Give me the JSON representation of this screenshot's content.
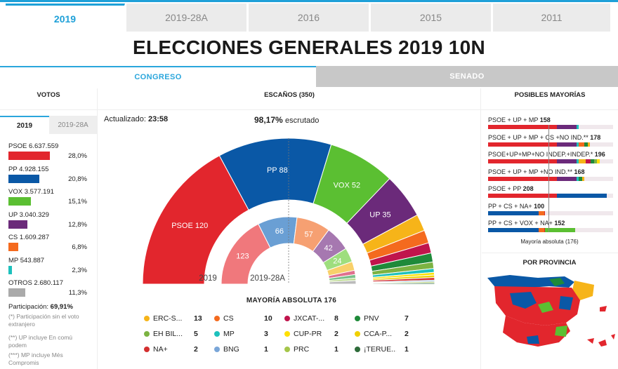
{
  "years": [
    "2019",
    "2019-28A",
    "2016",
    "2015",
    "2011"
  ],
  "title": "ELECCIONES GENERALES 2019 10N",
  "chambers": [
    "CONGRESO",
    "SENADO"
  ],
  "headers": {
    "votes": "VOTOS",
    "seats": "ESCAÑOS (350)",
    "majorities": "POSIBLES MAYORÍAS",
    "province": "POR PROVINCIA"
  },
  "votes_tabs": [
    "2019",
    "2019-28A"
  ],
  "votes": [
    {
      "label": "PSOE 6.637.559",
      "pct": "28,0%",
      "value": 28.0,
      "color": "#e2262d"
    },
    {
      "label": "PP 4.928.155",
      "pct": "20,8%",
      "value": 20.8,
      "color": "#0a58a6"
    },
    {
      "label": "VOX 3.577.191",
      "pct": "15,1%",
      "value": 15.1,
      "color": "#5bbf32"
    },
    {
      "label": "UP 3.040.329",
      "pct": "12,8%",
      "value": 12.8,
      "color": "#6b2a7a"
    },
    {
      "label": "CS 1.609.287",
      "pct": "6,8%",
      "value": 6.8,
      "color": "#f46a1e"
    },
    {
      "label": "MP 543.887",
      "pct": "2,3%",
      "value": 2.3,
      "color": "#1dc1bd"
    },
    {
      "label": "OTROS 2.680.117",
      "pct": "11,3%",
      "value": 11.3,
      "color": "#aaaaaa"
    }
  ],
  "participation_label": "Participación:",
  "participation": "69,91%",
  "notes": [
    "(*) Participación sin el voto extranjero",
    "(**) UP incluye En comú podem",
    "(***) MP incluye Més Compromis"
  ],
  "updated_label": "Actualizado:",
  "updated": "23:58",
  "scrutiny": "98,17%",
  "scrutiny_label": "escrutado",
  "chart_data": {
    "type": "pie",
    "title": "ESCAÑOS (350)",
    "outer_label": "2019",
    "inner_label": "2019-28A",
    "outer": [
      {
        "party": "PSOE",
        "seats": 120,
        "color": "#e2262d",
        "label": "PSOE 120"
      },
      {
        "party": "PP",
        "seats": 88,
        "color": "#0a58a6",
        "label": "PP 88"
      },
      {
        "party": "VOX",
        "seats": 52,
        "color": "#5bbf32",
        "label": "VOX 52"
      },
      {
        "party": "UP",
        "seats": 35,
        "color": "#6b2a7a",
        "label": "UP 35"
      },
      {
        "party": "ERC-S",
        "seats": 13,
        "color": "#f6b419"
      },
      {
        "party": "CS",
        "seats": 10,
        "color": "#f46a1e"
      },
      {
        "party": "JXCAT",
        "seats": 8,
        "color": "#c0144c"
      },
      {
        "party": "PNV",
        "seats": 7,
        "color": "#1f8a3a"
      },
      {
        "party": "EH BIL",
        "seats": 5,
        "color": "#7cb342"
      },
      {
        "party": "MP",
        "seats": 3,
        "color": "#1dc1bd"
      },
      {
        "party": "CUP-PR",
        "seats": 2,
        "color": "#ffe000"
      },
      {
        "party": "CCA-P",
        "seats": 2,
        "color": "#f0d000"
      },
      {
        "party": "NA+",
        "seats": 2,
        "color": "#d32f2f"
      },
      {
        "party": "BNG",
        "seats": 1,
        "color": "#7aa6d8"
      },
      {
        "party": "PRC",
        "seats": 1,
        "color": "#a5c64a"
      },
      {
        "party": "TERUEL",
        "seats": 1,
        "color": "#2e6b3a"
      }
    ],
    "inner": [
      {
        "party": "PSOE",
        "seats": 123,
        "color": "#f0787c",
        "label": "123"
      },
      {
        "party": "PP",
        "seats": 66,
        "color": "#6a9fd4",
        "label": "66"
      },
      {
        "party": "CS",
        "seats": 57,
        "color": "#f6a072",
        "label": "57"
      },
      {
        "party": "UP",
        "seats": 42,
        "color": "#a678b0",
        "label": "42"
      },
      {
        "party": "VOX",
        "seats": 24,
        "color": "#9ede7e",
        "label": "24"
      },
      {
        "party": "ERC",
        "seats": 15,
        "color": "#f8d06a"
      },
      {
        "party": "JXCAT",
        "seats": 7,
        "color": "#e0708e"
      },
      {
        "party": "PNV",
        "seats": 6,
        "color": "#7ac08a"
      },
      {
        "party": "EH BIL",
        "seats": 4,
        "color": "#b8d88a"
      },
      {
        "party": "Otros",
        "seats": 6,
        "color": "#bbbbbb"
      }
    ],
    "majority": 176
  },
  "majority_label": "MAYORÍA ABSOLUTA",
  "majority_value": "176",
  "legend": [
    {
      "name": "ERC-S...",
      "seats": "13",
      "color": "#f6b419"
    },
    {
      "name": "CS",
      "seats": "10",
      "color": "#f46a1e"
    },
    {
      "name": "JXCAT-...",
      "seats": "8",
      "color": "#c0144c"
    },
    {
      "name": "PNV",
      "seats": "7",
      "color": "#1f8a3a"
    },
    {
      "name": "EH BIL...",
      "seats": "5",
      "color": "#7cb342"
    },
    {
      "name": "MP",
      "seats": "3",
      "color": "#1dc1bd"
    },
    {
      "name": "CUP-PR",
      "seats": "2",
      "color": "#ffe000"
    },
    {
      "name": "CCA-P...",
      "seats": "2",
      "color": "#f0d000"
    },
    {
      "name": "NA+",
      "seats": "2",
      "color": "#d32f2f"
    },
    {
      "name": "BNG",
      "seats": "1",
      "color": "#7aa6d8"
    },
    {
      "name": "PRC",
      "seats": "1",
      "color": "#a5c64a"
    },
    {
      "name": "¡TERUE...",
      "seats": "1",
      "color": "#2e6b3a"
    }
  ],
  "majorities": [
    {
      "label": "PSOE + UP + MP",
      "total": "158",
      "segs": [
        [
          120,
          "#e2262d"
        ],
        [
          35,
          "#6b2a7a"
        ],
        [
          3,
          "#1dc1bd"
        ]
      ]
    },
    {
      "label": "PSOE + UP + MP + CS +NO IND.**",
      "total": "178",
      "segs": [
        [
          120,
          "#e2262d"
        ],
        [
          35,
          "#6b2a7a"
        ],
        [
          3,
          "#1dc1bd"
        ],
        [
          10,
          "#f46a1e"
        ],
        [
          7,
          "#1f8a3a"
        ],
        [
          3,
          "#f6b419"
        ]
      ]
    },
    {
      "label": "PSOE+UP+MP+NO INDEP.+INDEP.*",
      "total": "196",
      "segs": [
        [
          120,
          "#e2262d"
        ],
        [
          35,
          "#6b2a7a"
        ],
        [
          3,
          "#1dc1bd"
        ],
        [
          13,
          "#f6b419"
        ],
        [
          8,
          "#c0144c"
        ],
        [
          7,
          "#1f8a3a"
        ],
        [
          5,
          "#7cb342"
        ],
        [
          5,
          "#ffe000"
        ]
      ]
    },
    {
      "label": "PSOE + UP + MP +NO IND.**",
      "total": "168",
      "segs": [
        [
          120,
          "#e2262d"
        ],
        [
          35,
          "#6b2a7a"
        ],
        [
          3,
          "#1dc1bd"
        ],
        [
          7,
          "#1f8a3a"
        ],
        [
          3,
          "#f6b419"
        ]
      ]
    },
    {
      "label": "PSOE + PP",
      "total": "208",
      "segs": [
        [
          120,
          "#e2262d"
        ],
        [
          88,
          "#0a58a6"
        ]
      ]
    },
    {
      "label": "PP + CS + NA+",
      "total": "100",
      "segs": [
        [
          88,
          "#0a58a6"
        ],
        [
          10,
          "#f46a1e"
        ],
        [
          2,
          "#d32f2f"
        ]
      ]
    },
    {
      "label": "PP + CS + VOX + NA+",
      "total": "152",
      "segs": [
        [
          88,
          "#0a58a6"
        ],
        [
          10,
          "#f46a1e"
        ],
        [
          2,
          "#d32f2f"
        ],
        [
          52,
          "#5bbf32"
        ]
      ]
    }
  ],
  "majority_abs_text": "Mayoría absoluta (176)"
}
